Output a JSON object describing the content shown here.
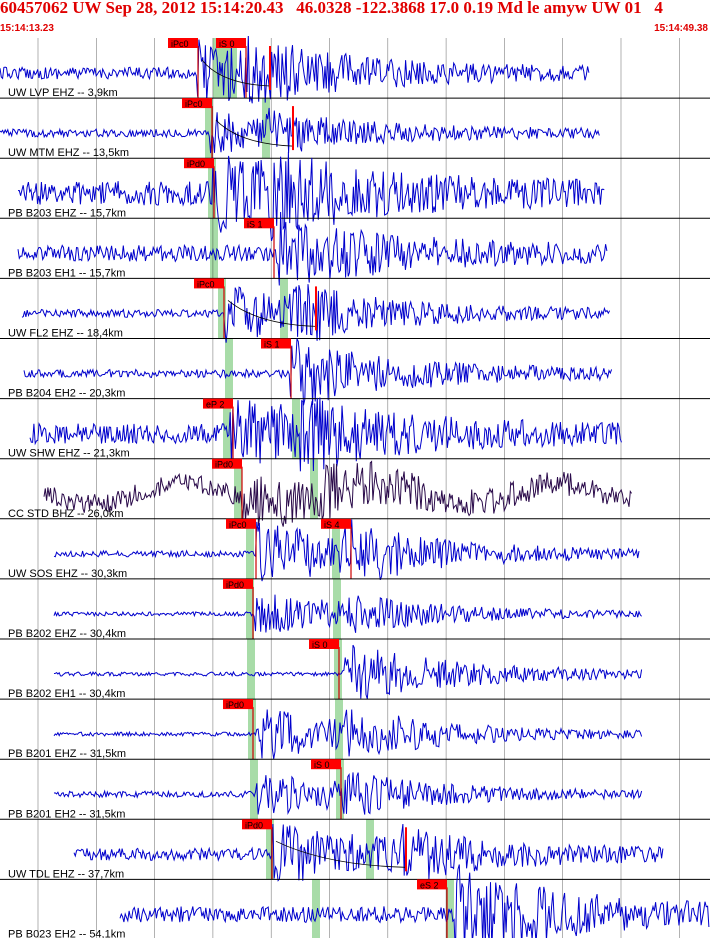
{
  "header": {
    "title": "60457062 UW Sep 28, 2012 15:14:20.43   46.0328 -122.3868 17.0 0.19 Md le amyw UW 01   4",
    "start_time": "15:14:13.23",
    "end_time": "15:14:49.38"
  },
  "colors": {
    "header_text": "#e00000",
    "trace": "#0000cc",
    "trace_alt": "#2a0a4a",
    "pick_box": "#ff0000",
    "pick_text": "#000000",
    "pick_window": "#a8dca8",
    "grid": "#000000"
  },
  "traces": [
    {
      "label": "UW LVP EHZ -- 3,9km",
      "alt_color": false,
      "picks": [
        {
          "label": "iPc0"
        },
        {
          "label": "iS 0"
        }
      ]
    },
    {
      "label": "UW MTM EHZ -- 13,5km",
      "alt_color": false,
      "picks": [
        {
          "label": "iPc0"
        }
      ]
    },
    {
      "label": "PB B203 EHZ -- 15,7km",
      "alt_color": false,
      "picks": [
        {
          "label": "iPd0"
        }
      ]
    },
    {
      "label": "PB B203 EH1 -- 15,7km",
      "alt_color": false,
      "picks": [
        {
          "label": "iS 1"
        }
      ]
    },
    {
      "label": "UW FL2 EHZ -- 18,4km",
      "alt_color": false,
      "picks": [
        {
          "label": "iPc0"
        }
      ]
    },
    {
      "label": "PB B204 EH2 -- 20,3km",
      "alt_color": false,
      "picks": [
        {
          "label": "iS 1"
        }
      ]
    },
    {
      "label": "UW SHW EHZ -- 21,3km",
      "alt_color": false,
      "picks": [
        {
          "label": "eP 2"
        }
      ]
    },
    {
      "label": "CC STD BHZ -- 26,0km",
      "alt_color": true,
      "picks": [
        {
          "label": "iPd0"
        }
      ]
    },
    {
      "label": "UW SOS EHZ -- 30,3km",
      "alt_color": false,
      "picks": [
        {
          "label": "iPc0"
        },
        {
          "label": "iS 4"
        }
      ]
    },
    {
      "label": "PB B202 EHZ -- 30,4km",
      "alt_color": false,
      "picks": [
        {
          "label": "iPd0"
        }
      ]
    },
    {
      "label": "PB B202 EH1 -- 30,4km",
      "alt_color": false,
      "picks": [
        {
          "label": "iS 0"
        }
      ]
    },
    {
      "label": "PB B201 EHZ -- 31,5km",
      "alt_color": false,
      "picks": [
        {
          "label": "iPd0"
        }
      ]
    },
    {
      "label": "PB B201 EH2 -- 31,5km",
      "alt_color": false,
      "picks": [
        {
          "label": "iS 0"
        }
      ]
    },
    {
      "label": "UW TDL EHZ -- 37,7km",
      "alt_color": false,
      "picks": [
        {
          "label": "iPd0"
        }
      ]
    },
    {
      "label": "PB B023 EH2 -- 54,1km",
      "alt_color": false,
      "picks": [
        {
          "label": "eS 2"
        }
      ]
    }
  ]
}
